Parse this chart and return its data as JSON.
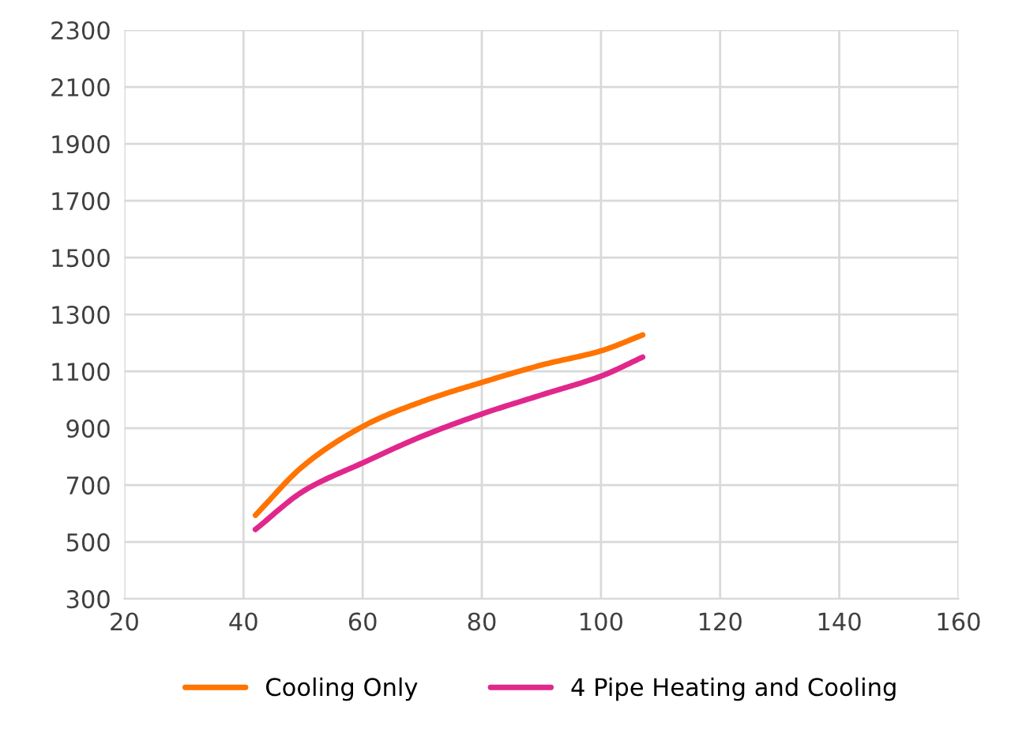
{
  "chart_data": {
    "type": "line",
    "xlim": [
      20,
      160
    ],
    "xticks": [
      20,
      40,
      60,
      80,
      100,
      120,
      140,
      160
    ],
    "ylim": [
      300,
      2300
    ],
    "yticks": [
      300,
      500,
      700,
      900,
      1100,
      1300,
      1500,
      1700,
      1900,
      2100,
      2300
    ],
    "grid": true,
    "legend": "bottom",
    "marker": "none",
    "line_style": "solid",
    "series": [
      {
        "name": "Cooling Only",
        "color": "#ff7300",
        "x": [
          42,
          50,
          60,
          70,
          80,
          90,
          100,
          107
        ],
        "values": [
          594,
          767,
          906,
          994,
          1061,
          1122,
          1172,
          1228
        ]
      },
      {
        "name": "4 Pipe Heating and Cooling",
        "color": "#e0288c",
        "x": [
          42,
          50,
          60,
          70,
          80,
          90,
          100,
          107
        ],
        "values": [
          544,
          678,
          778,
          872,
          950,
          1017,
          1083,
          1150
        ]
      }
    ]
  }
}
